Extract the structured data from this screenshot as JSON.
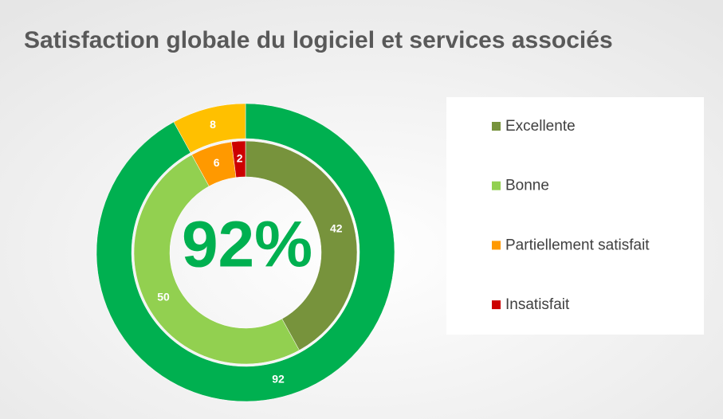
{
  "chart_data": {
    "type": "donut",
    "title": "Satisfaction globale du logiciel et services associés",
    "center_label": "92%",
    "rings": [
      {
        "values": [
          92,
          8
        ],
        "colors": [
          "#00b050",
          "#ffc000"
        ]
      },
      {
        "categories": [
          "Excellente",
          "Bonne",
          "Partiellement satisfait",
          "Insatisfait"
        ],
        "values": [
          42,
          50,
          6,
          2
        ],
        "colors": [
          "#77933c",
          "#92d050",
          "#ff9900",
          "#cc0000"
        ]
      }
    ]
  }
}
